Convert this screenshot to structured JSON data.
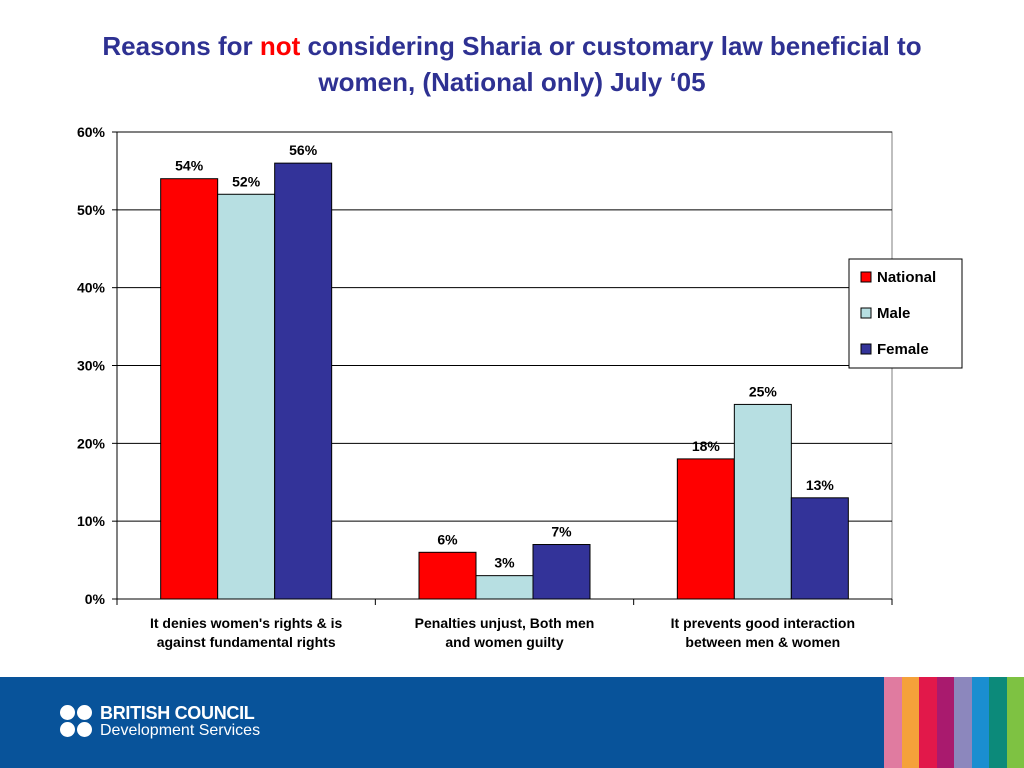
{
  "title": {
    "before": "Reasons for ",
    "emphasis": "not",
    "after": " considering Sharia or customary law beneficial to",
    "line2": "women, (National only) July ‘05"
  },
  "colors": {
    "title": "#2e3192",
    "title_emphasis": "#ff0000",
    "footer_background": "#08539a",
    "footer_stripes": [
      "#e07ba0",
      "#f5a13a",
      "#e2184a",
      "#a91a6e",
      "#8c87bd",
      "#1a8ed0",
      "#0c8a7a",
      "#7ec242"
    ]
  },
  "chart_data": {
    "type": "bar",
    "categories": [
      [
        "It denies women's rights & is",
        "against fundamental rights"
      ],
      [
        "Penalties unjust, Both men",
        "and women guilty"
      ],
      [
        "It prevents good interaction",
        "between men & women"
      ]
    ],
    "series": [
      {
        "name": "National",
        "color": "#ff0000",
        "values": [
          54,
          6,
          18
        ]
      },
      {
        "name": "Male",
        "color": "#b7dfe2",
        "values": [
          52,
          3,
          25
        ]
      },
      {
        "name": "Female",
        "color": "#333399",
        "values": [
          56,
          7,
          13
        ]
      }
    ],
    "value_format": "percent",
    "ylim": [
      0,
      60
    ],
    "yticks": [
      0,
      10,
      20,
      30,
      40,
      50,
      60
    ],
    "ytick_labels": [
      "0%",
      "10%",
      "20%",
      "30%",
      "40%",
      "50%",
      "60%"
    ],
    "xlabel": "",
    "ylabel": "",
    "grid": true,
    "legend_position": "right"
  },
  "footer": {
    "brand_line1": "BRITISH COUNCIL",
    "brand_line2": "Development Services"
  }
}
